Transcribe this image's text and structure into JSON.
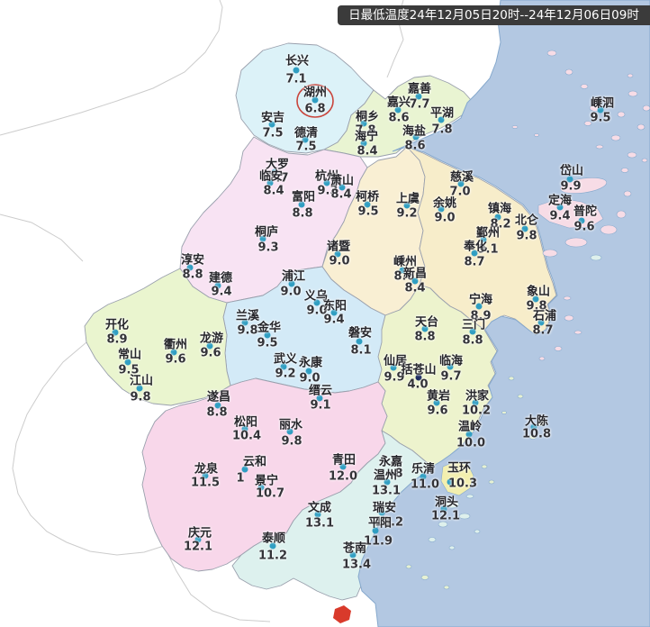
{
  "title": "日最低温度24年12月05日20时--24年12月06日09时",
  "theme": {
    "ocean": "#b3c8e2",
    "huzhou": "#dcf2f8",
    "jiaxing": "#e9f4d2",
    "hangzhou": "#f8e3f3",
    "shaoxing": "#f9efd3",
    "ningbo": "#f7edca",
    "zhoushan": "#f7dce6",
    "jinhua": "#d3eaf7",
    "quzhou": "#eaf5cf",
    "taizhou": "#edf3cd",
    "lishui": "#f8d7ea",
    "wenzhou": "#ddf1ee",
    "yuhuan": "#f3efae",
    "title_bg": "#3b3b3b",
    "dot": "#2f9ec2",
    "dark_dot": "#1b2a60",
    "red": "#c9453c"
  },
  "map": {
    "highlighted_station": "湖州",
    "stations": [
      {
        "n": "长兴",
        "t": "7.1",
        "l": [
          330,
          66
        ],
        "d": [
          329,
          78
        ],
        "v": [
          329,
          88
        ]
      },
      {
        "n": "湖州",
        "t": "6.8",
        "l": [
          350,
          101
        ],
        "d": [
          350,
          111
        ],
        "v": [
          350,
          121
        ]
      },
      {
        "n": "安吉",
        "t": "7.5",
        "l": [
          303,
          129
        ],
        "d": [
          302,
          138
        ],
        "v": [
          303,
          148
        ]
      },
      {
        "n": "德清",
        "t": "7.5",
        "l": [
          340,
          146
        ],
        "d": [
          339,
          155
        ],
        "v": [
          340,
          163
        ]
      },
      {
        "n": "桐乡",
        "t": "7.8",
        "l": [
          408,
          128
        ],
        "d": [
          404,
          137
        ],
        "v": [
          406,
          145
        ]
      },
      {
        "n": "海宁",
        "t": "8.4",
        "l": [
          407,
          150
        ],
        "d": [
          404,
          159
        ],
        "v": [
          408,
          168
        ]
      },
      {
        "n": "嘉善",
        "t": "7.7",
        "l": [
          466,
          97
        ],
        "d": [
          465,
          107
        ],
        "v": [
          466,
          116
        ]
      },
      {
        "n": "嘉兴",
        "t": "8.6",
        "l": [
          443,
          112
        ],
        "d": [
          442,
          122
        ],
        "v": [
          443,
          131
        ]
      },
      {
        "n": "平湖",
        "t": "7.8",
        "l": [
          491,
          124
        ],
        "d": [
          490,
          133
        ],
        "v": [
          491,
          144
        ]
      },
      {
        "n": "海盐",
        "t": "8.6",
        "l": [
          460,
          144
        ],
        "d": [
          462,
          152
        ],
        "v": [
          461,
          162
        ]
      },
      {
        "n": "嵊泗",
        "t": "9.5",
        "l": [
          669,
          113
        ],
        "d": [
          667,
          122
        ],
        "v": [
          667,
          131
        ]
      },
      {
        "n": "岱山",
        "t": "9.9",
        "l": [
          635,
          188
        ],
        "d": [
          633,
          199
        ],
        "v": [
          634,
          207
        ]
      },
      {
        "n": "定海",
        "t": "9.4",
        "l": [
          622,
          221
        ],
        "d": [
          622,
          230
        ],
        "v": [
          622,
          240
        ]
      },
      {
        "n": "普陀",
        "t": "9.6",
        "l": [
          650,
          233
        ],
        "d": [
          646,
          245
        ],
        "v": [
          649,
          252
        ]
      },
      {
        "n": "大罗",
        "t": "7.7",
        "l": [
          308,
          181
        ],
        "d": [
          305,
          191
        ],
        "v": [
          309,
          198
        ]
      },
      {
        "n": "临安",
        "t": "8.4",
        "l": [
          301,
          194
        ],
        "d": [
          300,
          203
        ],
        "v": [
          304,
          212
        ]
      },
      {
        "n": "杭州",
        "t": "9.3",
        "l": [
          363,
          194
        ],
        "d": [
          363,
          203
        ],
        "v": [
          364,
          212
        ]
      },
      {
        "n": "萧山",
        "t": "8.4",
        "l": [
          380,
          199
        ],
        "d": [
          380,
          208
        ],
        "v": [
          379,
          216
        ]
      },
      {
        "n": "富阳",
        "t": "8.8",
        "l": [
          337,
          217
        ],
        "d": [
          335,
          227
        ],
        "v": [
          336,
          237
        ]
      },
      {
        "n": "柯桥",
        "t": "9.5",
        "l": [
          408,
          217
        ],
        "d": [
          408,
          227
        ],
        "v": [
          409,
          235
        ]
      },
      {
        "n": "上虞",
        "t": "9.2",
        "l": [
          453,
          219
        ],
        "d": [
          452,
          228
        ],
        "v": [
          452,
          237
        ]
      },
      {
        "n": "桐庐",
        "t": "9.3",
        "l": [
          296,
          256
        ],
        "d": [
          292,
          265
        ],
        "v": [
          298,
          275
        ]
      },
      {
        "n": "淳安",
        "t": "8.8",
        "l": [
          214,
          287
        ],
        "d": [
          211,
          297
        ],
        "v": [
          214,
          305
        ]
      },
      {
        "n": "建德",
        "t": "9.4",
        "l": [
          245,
          307
        ],
        "d": [
          242,
          317
        ],
        "v": [
          246,
          324
        ]
      },
      {
        "n": "诸暨",
        "t": "9.0",
        "l": [
          376,
          272
        ],
        "d": [
          375,
          282
        ],
        "v": [
          377,
          290
        ]
      },
      {
        "n": "嵊州",
        "t": "8.6",
        "l": [
          450,
          289
        ],
        "d": [
          447,
          300
        ],
        "v": [
          449,
          307
        ]
      },
      {
        "n": "新昌",
        "t": "8.4",
        "l": [
          461,
          302
        ],
        "d": [
          461,
          312
        ],
        "v": [
          461,
          320
        ]
      },
      {
        "n": "慈溪",
        "t": "7.0",
        "l": [
          513,
          195
        ],
        "d": [
          512,
          204
        ],
        "v": [
          511,
          213
        ]
      },
      {
        "n": "余姚",
        "t": "9.0",
        "l": [
          494,
          224
        ],
        "d": [
          490,
          232
        ],
        "v": [
          494,
          242
        ]
      },
      {
        "n": "镇海",
        "t": "8.2",
        "l": [
          555,
          230
        ],
        "d": [
          553,
          241
        ],
        "v": [
          556,
          249
        ]
      },
      {
        "n": "北仑",
        "t": "9.8",
        "l": [
          585,
          243
        ],
        "d": [
          583,
          254
        ],
        "v": [
          585,
          262
        ]
      },
      {
        "n": "鄞州",
        "t": "9.1",
        "l": [
          542,
          257
        ],
        "d": [
          537,
          266
        ],
        "v": [
          542,
          277
        ]
      },
      {
        "n": "奉化",
        "t": "8.7",
        "l": [
          528,
          272
        ],
        "d": [
          527,
          281
        ],
        "v": [
          527,
          291
        ]
      },
      {
        "n": "宁海",
        "t": "8.9",
        "l": [
          534,
          331
        ],
        "d": [
          532,
          340
        ],
        "v": [
          534,
          351
        ]
      },
      {
        "n": "象山",
        "t": "9.8",
        "l": [
          598,
          322
        ],
        "d": [
          595,
          332
        ],
        "v": [
          596,
          340
        ]
      },
      {
        "n": "石浦",
        "t": "8.7",
        "l": [
          605,
          349
        ],
        "d": [
          601,
          358
        ],
        "v": [
          603,
          367
        ]
      },
      {
        "n": "三门",
        "t": "8.8",
        "l": [
          526,
          359
        ],
        "d": [
          525,
          368
        ],
        "v": [
          525,
          378
        ]
      },
      {
        "n": "浦江",
        "t": "9.0",
        "l": [
          326,
          305
        ],
        "d": [
          324,
          315
        ],
        "v": [
          323,
          324
        ]
      },
      {
        "n": "义乌",
        "t": "9.0",
        "l": [
          351,
          327
        ],
        "d": [
          352,
          336
        ],
        "v": [
          352,
          345
        ]
      },
      {
        "n": "东阳",
        "t": "9.4",
        "l": [
          372,
          338
        ],
        "d": [
          371,
          347
        ],
        "v": [
          371,
          355
        ]
      },
      {
        "n": "兰溪",
        "t": "9.8",
        "l": [
          275,
          349
        ],
        "d": [
          272,
          358
        ],
        "v": [
          275,
          367
        ]
      },
      {
        "n": "金华",
        "t": "9.5",
        "l": [
          299,
          362
        ],
        "d": [
          297,
          372
        ],
        "v": [
          297,
          381
        ]
      },
      {
        "n": "武义",
        "t": "9.2",
        "l": [
          317,
          397
        ],
        "d": [
          315,
          407
        ],
        "v": [
          317,
          415
        ]
      },
      {
        "n": "永康",
        "t": "9.0",
        "l": [
          345,
          401
        ],
        "d": [
          343,
          412
        ],
        "v": [
          344,
          420
        ]
      },
      {
        "n": "磐安",
        "t": "8.1",
        "l": [
          400,
          368
        ],
        "d": [
          399,
          379
        ],
        "v": [
          401,
          389
        ]
      },
      {
        "n": "天台",
        "t": "8.8",
        "l": [
          474,
          356
        ],
        "d": [
          472,
          365
        ],
        "v": [
          472,
          374
        ]
      },
      {
        "n": "开化",
        "t": "8.9",
        "l": [
          130,
          359
        ],
        "d": [
          128,
          369
        ],
        "v": [
          130,
          377
        ]
      },
      {
        "n": "常山",
        "t": "9.5",
        "l": [
          144,
          392
        ],
        "d": [
          142,
          402
        ],
        "v": [
          143,
          411
        ]
      },
      {
        "n": "江山",
        "t": "9.8",
        "l": [
          157,
          421
        ],
        "d": [
          155,
          431
        ],
        "v": [
          156,
          441
        ]
      },
      {
        "n": "衢州",
        "t": "9.6",
        "l": [
          195,
          381
        ],
        "d": [
          193,
          391
        ],
        "v": [
          195,
          399
        ]
      },
      {
        "n": "龙游",
        "t": "9.6",
        "l": [
          235,
          374
        ],
        "d": [
          233,
          384
        ],
        "v": [
          234,
          392
        ]
      },
      {
        "n": "遂昌",
        "t": "8.8",
        "l": [
          243,
          439
        ],
        "d": [
          242,
          450
        ],
        "v": [
          241,
          458
        ]
      },
      {
        "n": "松阳",
        "t": "10.4",
        "l": [
          273,
          467
        ],
        "d": [
          272,
          476
        ],
        "v": [
          274,
          484
        ]
      },
      {
        "n": "丽水",
        "t": "9.8",
        "l": [
          323,
          470
        ],
        "d": [
          322,
          479
        ],
        "v": [
          324,
          490
        ]
      },
      {
        "n": "缙云",
        "t": "9.1",
        "l": [
          356,
          432
        ],
        "d": [
          355,
          442
        ],
        "v": [
          356,
          450
        ]
      },
      {
        "n": "云和",
        "t": "1",
        "l": [
          283,
          511
        ],
        "d": [
          272,
          521
        ],
        "v": [
          267,
          531
        ]
      },
      {
        "n": "景宁",
        "t": "10.7",
        "l": [
          296,
          532
        ],
        "d": [
          290,
          541
        ],
        "v": [
          300,
          548
        ]
      },
      {
        "n": "龙泉",
        "t": "11.5",
        "l": [
          229,
          519
        ],
        "d": [
          228,
          528
        ],
        "v": [
          228,
          536
        ]
      },
      {
        "n": "庆元",
        "t": "12.1",
        "l": [
          222,
          590
        ],
        "d": [
          220,
          599
        ],
        "v": [
          220,
          607
        ]
      },
      {
        "n": "青田",
        "t": "12.0",
        "l": [
          382,
          509
        ],
        "d": [
          381,
          518
        ],
        "v": [
          381,
          529
        ]
      },
      {
        "n": "临海",
        "t": "9.7",
        "l": [
          501,
          399
        ],
        "d": [
          500,
          407
        ],
        "v": [
          501,
          418
        ]
      },
      {
        "n": "仙居",
        "t": "9.9",
        "l": [
          439,
          399
        ],
        "d": [
          437,
          408
        ],
        "v": [
          438,
          419
        ]
      },
      {
        "n": "括苍山",
        "t": "4.0",
        "l": [
          465,
          409
        ],
        "d": [
          465,
          419
        ],
        "v": [
          464,
          427
        ],
        "dark": true
      },
      {
        "n": "黄岩",
        "t": "9.6",
        "l": [
          487,
          438
        ],
        "d": [
          485,
          447
        ],
        "v": [
          486,
          456
        ]
      },
      {
        "n": "洪家",
        "t": "10.2",
        "l": [
          530,
          438
        ],
        "d": [
          528,
          447
        ],
        "v": [
          529,
          456
        ]
      },
      {
        "n": "温岭",
        "t": "10.0",
        "l": [
          522,
          472
        ],
        "d": [
          521,
          482
        ],
        "v": [
          523,
          492
        ]
      },
      {
        "n": "大陈",
        "t": "10.8",
        "l": [
          596,
          466
        ],
        "d": [
          593,
          474
        ],
        "v": [
          596,
          482
        ]
      },
      {
        "n": "玉环",
        "t": "10.3",
        "l": [
          510,
          518
        ],
        "d": [
          500,
          535
        ],
        "v": [
          514,
          537
        ]
      },
      {
        "n": "永嘉",
        "t": "8",
        "l": [
          434,
          511
        ],
        "v": [
          443,
          526
        ]
      },
      {
        "n": "温州",
        "t": "13.1",
        "l": [
          428,
          526
        ],
        "d": [
          430,
          535
        ],
        "v": [
          429,
          545
        ]
      },
      {
        "n": "乐清",
        "t": "11.0",
        "l": [
          470,
          519
        ],
        "d": [
          470,
          529
        ],
        "v": [
          472,
          538
        ]
      },
      {
        "n": "洞头",
        "t": "12.1",
        "l": [
          496,
          556
        ],
        "d": [
          493,
          565
        ],
        "v": [
          495,
          573
        ]
      },
      {
        "n": "瑞安",
        "t": "13.2",
        "l": [
          427,
          562
        ],
        "d": [
          424,
          569
        ],
        "v": [
          432,
          580
        ]
      },
      {
        "n": "平阳",
        "t": "11.9",
        "l": [
          422,
          579
        ],
        "d": [
          417,
          589
        ],
        "v": [
          420,
          601
        ]
      },
      {
        "n": "文成",
        "t": "13.1",
        "l": [
          355,
          562
        ],
        "d": [
          353,
          571
        ],
        "v": [
          355,
          581
        ]
      },
      {
        "n": "泰顺",
        "t": "11.2",
        "l": [
          304,
          596
        ],
        "d": [
          303,
          606
        ],
        "v": [
          303,
          617
        ]
      },
      {
        "n": "苍南",
        "t": "13.4",
        "l": [
          394,
          607
        ],
        "d": [
          392,
          616
        ],
        "v": [
          396,
          627
        ]
      }
    ]
  }
}
